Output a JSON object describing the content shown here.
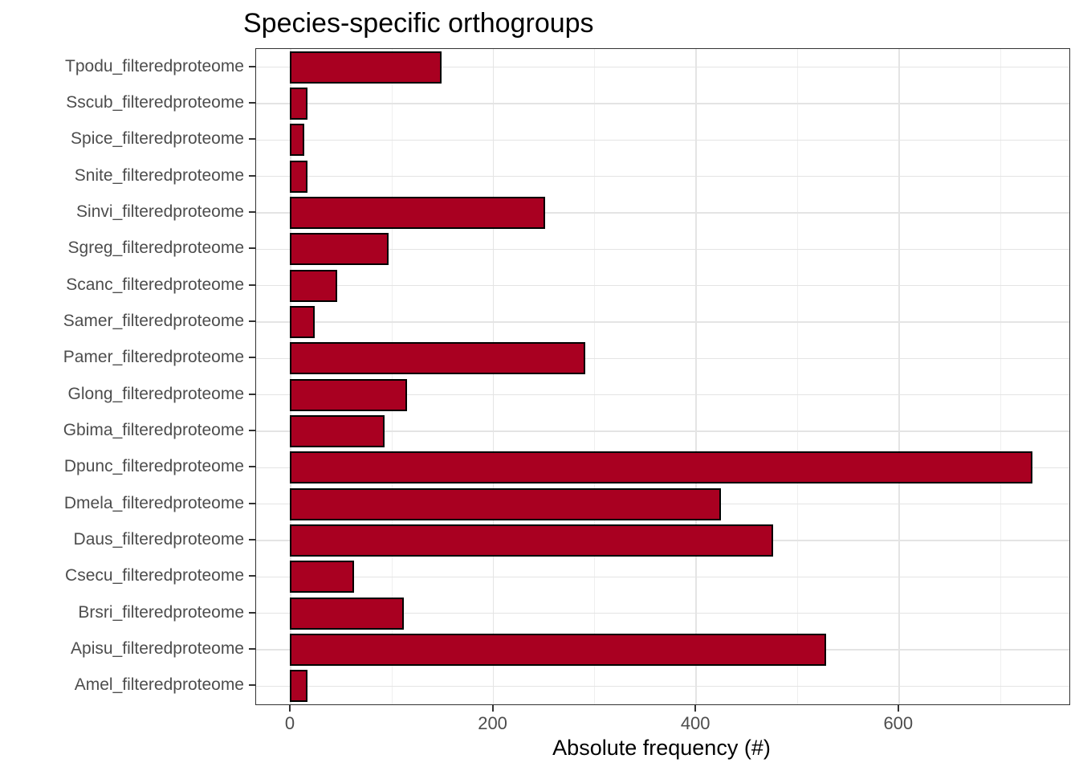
{
  "chart_data": {
    "type": "bar",
    "orientation": "horizontal",
    "title": "Species-specific orthogroups",
    "xlabel": "Absolute frequency (#)",
    "ylabel": "",
    "categories": [
      "Tpodu_filteredproteome",
      "Sscub_filteredproteome",
      "Spice_filteredproteome",
      "Snite_filteredproteome",
      "Sinvi_filteredproteome",
      "Sgreg_filteredproteome",
      "Scanc_filteredproteome",
      "Samer_filteredproteome",
      "Pamer_filteredproteome",
      "Glong_filteredproteome",
      "Gbima_filteredproteome",
      "Dpunc_filteredproteome",
      "Dmela_filteredproteome",
      "Daus_filteredproteome",
      "Csecu_filteredproteome",
      "Brsri_filteredproteome",
      "Apisu_filteredproteome",
      "Amel_filteredproteome"
    ],
    "values": [
      148,
      16,
      13,
      16,
      250,
      96,
      45,
      23,
      290,
      114,
      92,
      731,
      424,
      475,
      62,
      111,
      527,
      16
    ],
    "x_ticks": [
      0,
      200,
      400,
      600
    ],
    "x_minor_gridlines": [
      100,
      300,
      500,
      700
    ],
    "xlim": [
      -34,
      768
    ],
    "grid": true,
    "legend": "none",
    "colors": {
      "bar_fill": "#A90021",
      "bar_border": "#000000",
      "axis_text": "#4D4D4D",
      "title_text": "#000000",
      "panel_border": "#333333",
      "major_gridline": "#E4E4E4",
      "minor_gridline": "#EFEFEF",
      "background": "#FFFFFF"
    }
  }
}
